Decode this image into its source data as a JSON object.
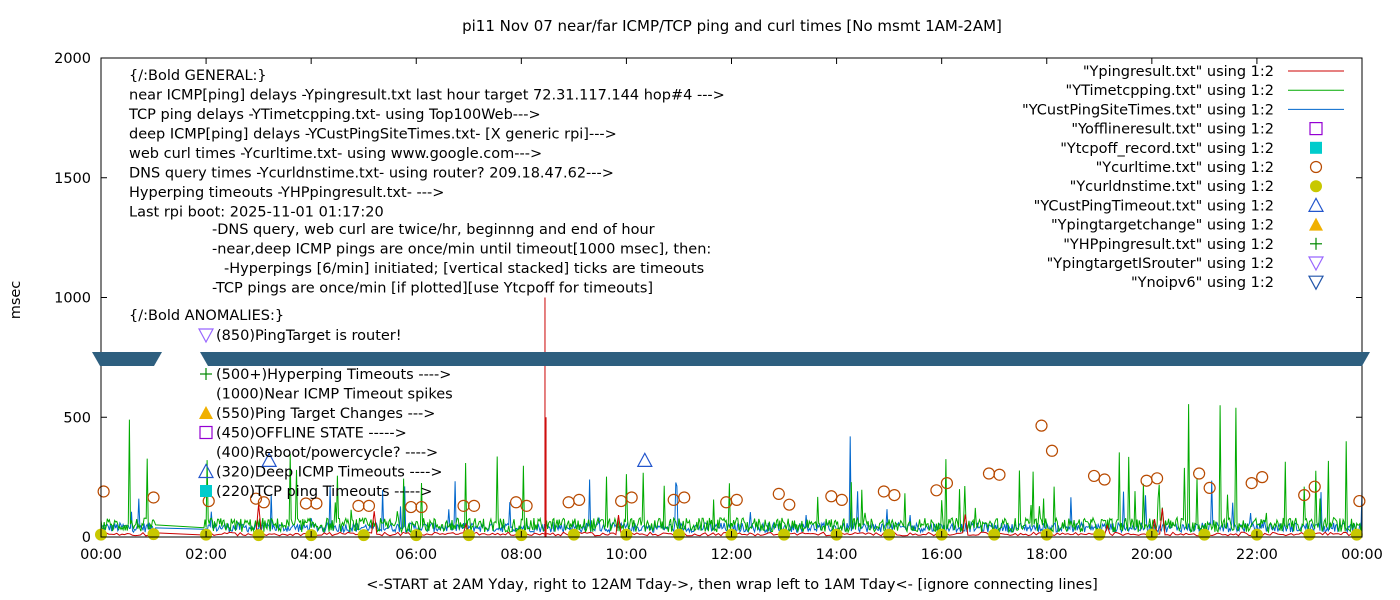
{
  "chart_data": {
    "type": "line",
    "title": "pi11 Nov 07  near/far ICMP/TCP ping and curl times [No msmt 1AM-2AM]",
    "xlabel": "<-START at 2AM Yday, right to 12AM Tday->, then wrap left to 1AM Tday<- [ignore connecting lines]",
    "ylabel": "msec",
    "xlim": [
      0,
      24
    ],
    "ylim": [
      0,
      2000
    ],
    "y_break": {
      "at_approx": 770,
      "color": "#2e5f7f"
    },
    "x_ticks": [
      "00:00",
      "02:00",
      "04:00",
      "06:00",
      "08:00",
      "10:00",
      "12:00",
      "14:00",
      "16:00",
      "18:00",
      "20:00",
      "22:00",
      "00:00"
    ],
    "y_ticks": [
      "0",
      "500",
      "1000",
      "1500",
      "2000"
    ],
    "grid": false,
    "legend_position": "top-right",
    "legend": [
      {
        "label": "\"Ypingresult.txt\" using 1:2",
        "style": "line",
        "color": "#cc0000"
      },
      {
        "label": "\"YTimetcpping.txt\" using 1:2",
        "style": "line",
        "color": "#00aa00"
      },
      {
        "label": "\"YCustPingSiteTimes.txt\" using 1:2",
        "style": "line",
        "color": "#0066cc"
      },
      {
        "label": "\"Yofflineresult.txt\" using 1:2",
        "style": "open-square",
        "color": "#9400d3"
      },
      {
        "label": "\"Ytcpoff_record.txt\" using 1:2",
        "style": "filled-square",
        "color": "#00cccc"
      },
      {
        "label": "\"Ycurltime.txt\" using 1:2",
        "style": "open-circle",
        "color": "#b84a00"
      },
      {
        "label": "\"Ycurldnstime.txt\" using 1:2",
        "style": "filled-circle",
        "color": "#c8c800"
      },
      {
        "label": "\"YCustPingTimeout.txt\" using 1:2",
        "style": "open-triangle-up",
        "color": "#2255cc"
      },
      {
        "label": "\"Ypingtargetchange\" using 1:2",
        "style": "filled-triangle-up",
        "color": "#f0b000"
      },
      {
        "label": "\"YHPpingresult.txt\" using 1:2",
        "style": "plus",
        "color": "#008800"
      },
      {
        "label": "\"YpingtargetISrouter\" using 1:2",
        "style": "open-triangle-down",
        "color": "#9966ff"
      },
      {
        "label": "\"Ynoipv6\" using 1:2",
        "style": "open-triangle-down",
        "color": "#2255aa"
      }
    ],
    "annotations_general": [
      "{/:Bold GENERAL:}",
      "near ICMP[ping] delays -Ypingresult.txt last hour target 72.31.117.144 hop#4 --->",
      "TCP ping delays -YTimetcpping.txt- using Top100Web--->",
      "deep ICMP[ping] delays -YCustPingSiteTimes.txt- [X generic rpi]--->",
      "web curl times -Ycurltime.txt- using www.google.com--->",
      "DNS query times -Ycurldnstime.txt- using router? 209.18.47.62--->",
      "Hyperping timeouts -YHPpingresult.txt- --->",
      "Last rpi boot: 2025-11-01 01:17:20"
    ],
    "annotations_notes": [
      "-DNS query, web curl are twice/hr, beginnng and end of hour",
      "-near,deep ICMP pings are once/min until timeout[1000 msec], then:",
      "  -Hyperpings [6/min] initiated; [vertical stacked] ticks are timeouts",
      "-TCP pings are once/min [if plotted][use Ytcpoff for timeouts]"
    ],
    "annotations_anomalies_title": "{/:Bold ANOMALIES:}",
    "annotations_anomalies": [
      {
        "text": "(850)PingTarget is router!",
        "marker": "open-triangle-down",
        "color": "#9966ff"
      },
      {
        "text": "(500+)Hyperping Timeouts ---->",
        "marker": "plus",
        "color": "#008800"
      },
      {
        "text": "(1000)Near ICMP Timeout spikes",
        "marker": "none",
        "color": ""
      },
      {
        "text": "(550)Ping Target Changes --->",
        "marker": "filled-triangle-up",
        "color": "#f0b000"
      },
      {
        "text": "(450)OFFLINE STATE ----->",
        "marker": "open-square",
        "color": "#9400d3"
      },
      {
        "text": "(400)Reboot/powercycle? ---->",
        "marker": "none",
        "color": ""
      },
      {
        "text": "(320)Deep ICMP Timeouts ---->",
        "marker": "open-triangle-up",
        "color": "#2255cc"
      },
      {
        "text": "(220)TCP ping Timeouts ----->",
        "marker": "filled-square",
        "color": "#00cccc"
      }
    ],
    "curl_times": [
      {
        "x": 0.05,
        "y": 190
      },
      {
        "x": 1.0,
        "y": 165
      },
      {
        "x": 2.05,
        "y": 150
      },
      {
        "x": 2.95,
        "y": 160
      },
      {
        "x": 3.1,
        "y": 145
      },
      {
        "x": 3.9,
        "y": 140
      },
      {
        "x": 4.1,
        "y": 140
      },
      {
        "x": 4.9,
        "y": 130
      },
      {
        "x": 5.1,
        "y": 130
      },
      {
        "x": 5.9,
        "y": 125
      },
      {
        "x": 6.1,
        "y": 125
      },
      {
        "x": 6.9,
        "y": 130
      },
      {
        "x": 7.1,
        "y": 130
      },
      {
        "x": 7.9,
        "y": 145
      },
      {
        "x": 8.1,
        "y": 130
      },
      {
        "x": 8.9,
        "y": 145
      },
      {
        "x": 9.1,
        "y": 155
      },
      {
        "x": 9.9,
        "y": 150
      },
      {
        "x": 10.1,
        "y": 165
      },
      {
        "x": 10.9,
        "y": 155
      },
      {
        "x": 11.1,
        "y": 165
      },
      {
        "x": 11.9,
        "y": 145
      },
      {
        "x": 12.1,
        "y": 155
      },
      {
        "x": 12.9,
        "y": 180
      },
      {
        "x": 13.1,
        "y": 135
      },
      {
        "x": 13.9,
        "y": 170
      },
      {
        "x": 14.1,
        "y": 155
      },
      {
        "x": 14.9,
        "y": 190
      },
      {
        "x": 15.1,
        "y": 175
      },
      {
        "x": 15.9,
        "y": 195
      },
      {
        "x": 16.1,
        "y": 225
      },
      {
        "x": 16.9,
        "y": 265
      },
      {
        "x": 17.1,
        "y": 260
      },
      {
        "x": 17.9,
        "y": 465
      },
      {
        "x": 18.1,
        "y": 360
      },
      {
        "x": 18.9,
        "y": 255
      },
      {
        "x": 19.1,
        "y": 240
      },
      {
        "x": 19.9,
        "y": 235
      },
      {
        "x": 20.1,
        "y": 245
      },
      {
        "x": 20.9,
        "y": 265
      },
      {
        "x": 21.1,
        "y": 205
      },
      {
        "x": 21.9,
        "y": 225
      },
      {
        "x": 22.1,
        "y": 250
      },
      {
        "x": 22.9,
        "y": 175
      },
      {
        "x": 23.1,
        "y": 210
      },
      {
        "x": 23.95,
        "y": 150
      }
    ],
    "dns_times": [
      {
        "x": 0.0,
        "y": 10
      },
      {
        "x": 1.0,
        "y": 12
      },
      {
        "x": 2.0,
        "y": 10
      },
      {
        "x": 3.0,
        "y": 8
      },
      {
        "x": 4.0,
        "y": 8
      },
      {
        "x": 5.0,
        "y": 8
      },
      {
        "x": 6.0,
        "y": 8
      },
      {
        "x": 7.0,
        "y": 8
      },
      {
        "x": 8.0,
        "y": 8
      },
      {
        "x": 9.0,
        "y": 10
      },
      {
        "x": 10.0,
        "y": 10
      },
      {
        "x": 11.0,
        "y": 10
      },
      {
        "x": 12.0,
        "y": 10
      },
      {
        "x": 13.0,
        "y": 10
      },
      {
        "x": 14.0,
        "y": 10
      },
      {
        "x": 15.0,
        "y": 10
      },
      {
        "x": 16.0,
        "y": 10
      },
      {
        "x": 17.0,
        "y": 10
      },
      {
        "x": 18.0,
        "y": 10
      },
      {
        "x": 19.0,
        "y": 10
      },
      {
        "x": 20.0,
        "y": 10
      },
      {
        "x": 21.0,
        "y": 10
      },
      {
        "x": 22.0,
        "y": 10
      },
      {
        "x": 23.0,
        "y": 10
      },
      {
        "x": 23.9,
        "y": 10
      }
    ],
    "deep_icmp_timeouts": [
      {
        "x": 3.2,
        "y": 320
      },
      {
        "x": 10.35,
        "y": 320
      }
    ],
    "near_icmp_spikes": [
      {
        "x": 8.45,
        "y": 1000
      },
      {
        "x": 8.47,
        "y": 500
      }
    ],
    "series_summary": {
      "tcp_ping_typical_msec": [
        20,
        80
      ],
      "tcp_ping_peaks_msec": [
        {
          "x": 0.55,
          "y": 490
        },
        {
          "x": 20.7,
          "y": 555
        },
        {
          "x": 21.3,
          "y": 550
        },
        {
          "x": 21.6,
          "y": 540
        },
        {
          "x": 23.7,
          "y": 400
        }
      ],
      "deep_icmp_typical_msec": [
        20,
        60
      ],
      "deep_icmp_peaks_msec": [
        {
          "x": 14.25,
          "y": 420
        },
        {
          "x": 9.3,
          "y": 240
        }
      ],
      "near_icmp_typical_msec": [
        5,
        20
      ]
    }
  }
}
